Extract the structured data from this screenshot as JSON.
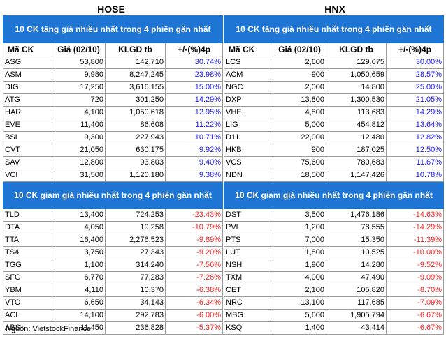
{
  "hose": {
    "title": "HOSE",
    "gain_header": "10 CK tăng giá nhiều nhất trong 4 phiên gần nhất",
    "loss_header": "10 CK giảm giá nhiều nhất trong 4 phiên gần nhất",
    "columns": [
      "Mã CK",
      "Giá (02/10)",
      "KLGD tb",
      "+/-(%)4p"
    ],
    "gainers": [
      [
        "ASG",
        "53,800",
        "142,710",
        "30.74%"
      ],
      [
        "ASM",
        "9,980",
        "8,247,245",
        "23.98%"
      ],
      [
        "DIG",
        "17,250",
        "3,616,155",
        "15.00%"
      ],
      [
        "ATG",
        "720",
        "301,250",
        "14.29%"
      ],
      [
        "HAR",
        "4,100",
        "1,050,618",
        "12.95%"
      ],
      [
        "EVE",
        "11,400",
        "86,608",
        "11.22%"
      ],
      [
        "BSI",
        "9,300",
        "227,943",
        "10.71%"
      ],
      [
        "CVT",
        "21,050",
        "630,175",
        "9.92%"
      ],
      [
        "SAV",
        "12,800",
        "93,803",
        "9.40%"
      ],
      [
        "VCI",
        "31,500",
        "1,120,180",
        "9.38%"
      ]
    ],
    "losers": [
      [
        "TLD",
        "13,400",
        "724,253",
        "-23.43%"
      ],
      [
        "DTA",
        "4,050",
        "19,258",
        "-10.79%"
      ],
      [
        "TTA",
        "16,400",
        "2,276,523",
        "-9.89%"
      ],
      [
        "TS4",
        "3,750",
        "27,343",
        "-9.20%"
      ],
      [
        "TGG",
        "1,100",
        "314,240",
        "-7.56%"
      ],
      [
        "SFG",
        "6,770",
        "77,283",
        "-7.26%"
      ],
      [
        "YBM",
        "4,110",
        "10,370",
        "-6.38%"
      ],
      [
        "VTO",
        "6,650",
        "34,143",
        "-6.34%"
      ],
      [
        "ACL",
        "14,100",
        "292,783",
        "-6.00%"
      ],
      [
        "ABS",
        "11,450",
        "236,828",
        "-5.37%"
      ]
    ]
  },
  "hnx": {
    "title": "HNX",
    "gain_header": "10 CK tăng giá nhiều nhất trong 4 phiên gần nhất",
    "loss_header": "10 CK giảm giá nhiều nhất trong 4 phiên gần nhất",
    "columns": [
      "Mã CK",
      "Giá (02/10)",
      "KLGD tb",
      "+/-(%)4p"
    ],
    "gainers": [
      [
        "LCS",
        "2,600",
        "129,675",
        "30.00%"
      ],
      [
        "ACM",
        "900",
        "1,050,659",
        "28.57%"
      ],
      [
        "NGC",
        "2,000",
        "14,800",
        "25.00%"
      ],
      [
        "DXP",
        "13,800",
        "1,300,530",
        "21.05%"
      ],
      [
        "VHE",
        "4,800",
        "113,683",
        "14.29%"
      ],
      [
        "LIG",
        "5,000",
        "454,812",
        "13.64%"
      ],
      [
        "D11",
        "22,000",
        "12,480",
        "12.82%"
      ],
      [
        "HKB",
        "900",
        "187,025",
        "12.50%"
      ],
      [
        "VCS",
        "75,600",
        "780,683",
        "11.67%"
      ],
      [
        "NDN",
        "18,500",
        "1,147,426",
        "10.78%"
      ]
    ],
    "losers": [
      [
        "DST",
        "3,500",
        "1,476,186",
        "-14.63%"
      ],
      [
        "PVL",
        "1,200",
        "78,555",
        "-14.29%"
      ],
      [
        "PTS",
        "7,000",
        "15,350",
        "-11.39%"
      ],
      [
        "LUT",
        "1,800",
        "10,525",
        "-10.00%"
      ],
      [
        "NSH",
        "1,900",
        "14,280",
        "-9.52%"
      ],
      [
        "TXM",
        "4,000",
        "47,490",
        "-9.09%"
      ],
      [
        "CET",
        "2,100",
        "105,820",
        "-8.70%"
      ],
      [
        "NRC",
        "13,100",
        "117,685",
        "-7.09%"
      ],
      [
        "MBG",
        "5,600",
        "1,905,794",
        "-6.67%"
      ],
      [
        "KSQ",
        "1,400",
        "43,414",
        "-6.67%"
      ]
    ]
  },
  "source": "Nguồn: VietstockFinance",
  "colors": {
    "header_bg": "#1f75d4",
    "gain": "#1a1aff",
    "loss": "#ff2020"
  }
}
